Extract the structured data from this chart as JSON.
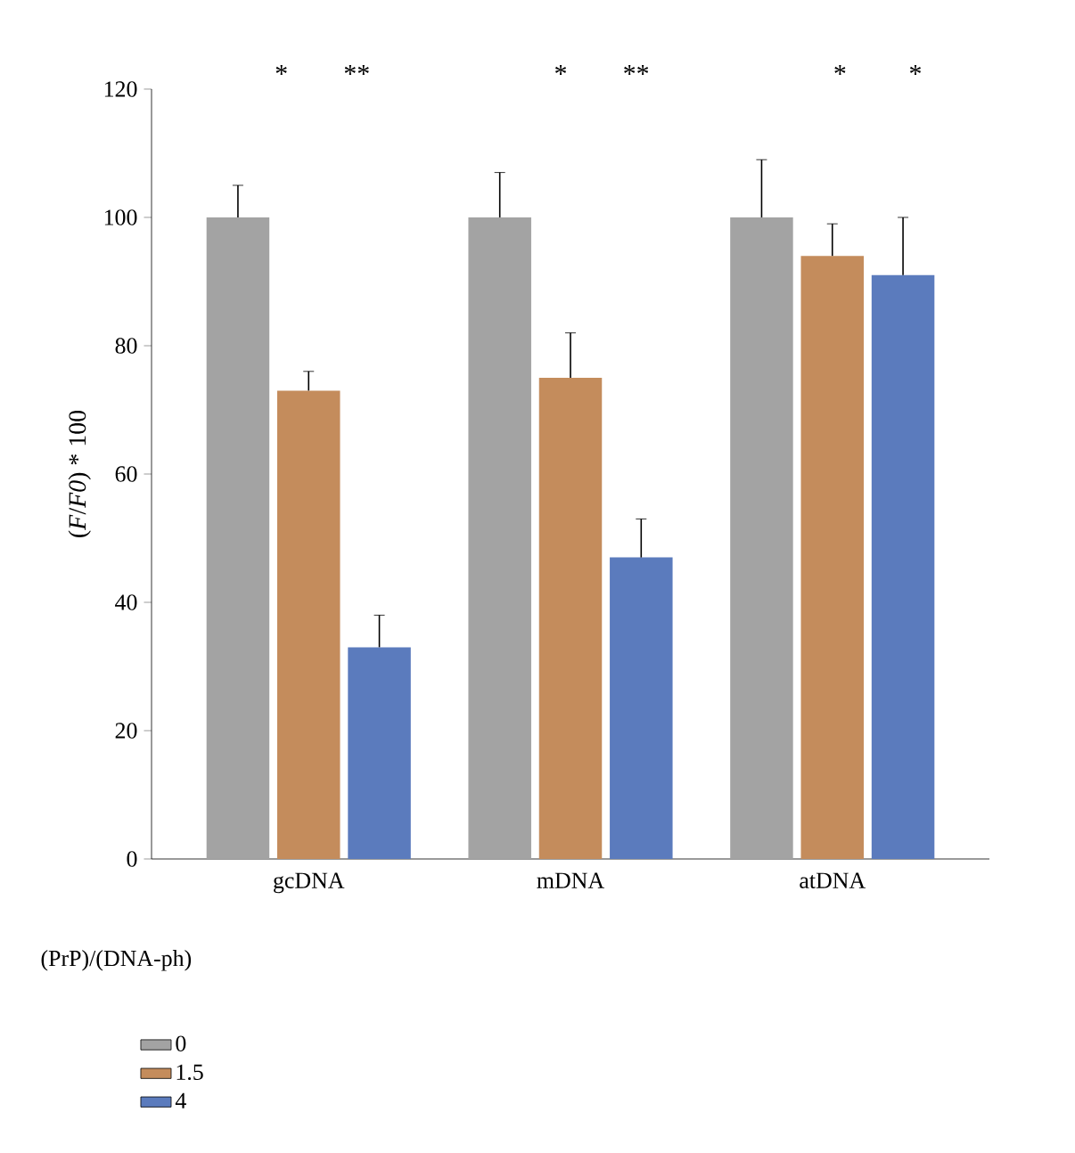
{
  "chart_data": {
    "type": "bar",
    "ylabel": "(*F*/*F0*) * 100",
    "legend_title": "(PrP)/(DNA-ph)",
    "categories": [
      "gcDNA",
      "mDNA",
      "atDNA"
    ],
    "series": [
      {
        "name": "0",
        "color": "#a3a3a3",
        "values": [
          100,
          100,
          100
        ],
        "errors": [
          5,
          7,
          9
        ]
      },
      {
        "name": "1.5",
        "color": "#c48c5c",
        "values": [
          73,
          75,
          94
        ],
        "errors": [
          3,
          7,
          5
        ]
      },
      {
        "name": "4",
        "color": "#5b7bbd",
        "values": [
          33,
          47,
          91
        ],
        "errors": [
          5,
          6,
          9
        ]
      }
    ],
    "ylim": [
      0,
      120
    ],
    "yticks": [
      0,
      20,
      40,
      60,
      80,
      100,
      120
    ],
    "legend": "bottom left",
    "annotations": [
      "*",
      "**",
      "*",
      "**",
      "*",
      "*"
    ]
  }
}
